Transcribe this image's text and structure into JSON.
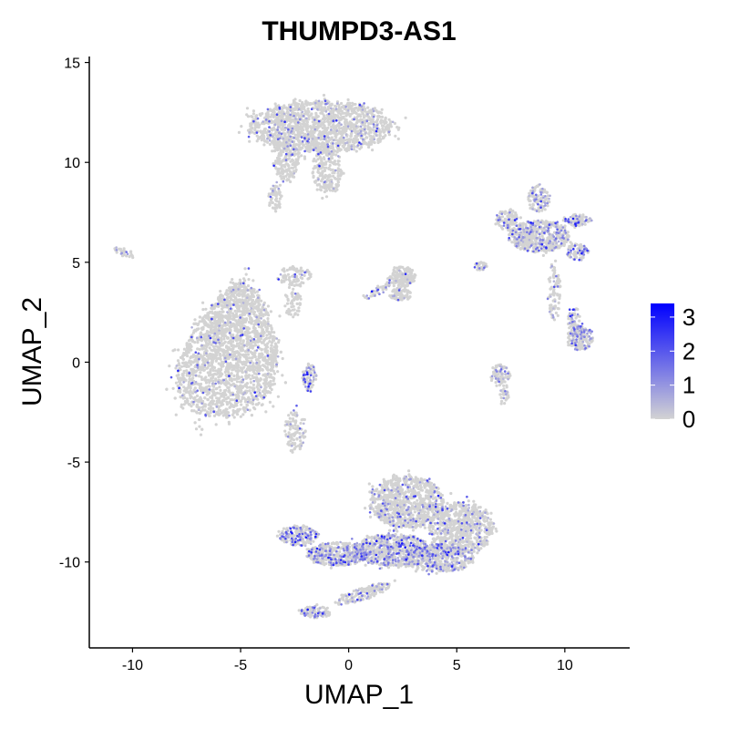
{
  "chart_data": {
    "type": "scatter",
    "title": "THUMPD3-AS1",
    "xlabel": "UMAP_1",
    "ylabel": "UMAP_2",
    "xlim": [
      -12,
      13
    ],
    "ylim": [
      -14.3,
      15.3
    ],
    "x_ticks": [
      {
        "value": -10,
        "label": "-10"
      },
      {
        "value": -5,
        "label": "-5"
      },
      {
        "value": 0,
        "label": "0"
      },
      {
        "value": 5,
        "label": "5"
      },
      {
        "value": 10,
        "label": "10"
      }
    ],
    "y_ticks": [
      {
        "value": 15,
        "label": "15"
      },
      {
        "value": 10,
        "label": "10"
      },
      {
        "value": 5,
        "label": "5"
      },
      {
        "value": 0,
        "label": "0"
      },
      {
        "value": -5,
        "label": "-5"
      },
      {
        "value": -10,
        "label": "-10"
      }
    ],
    "grid": false,
    "legend": {
      "placement": "right",
      "type": "colorbar",
      "min": 0,
      "max": 3.4,
      "low_color": "#d3d3d3",
      "high_color": "#0000ff",
      "ticks": [
        {
          "value": 3,
          "label": "3"
        },
        {
          "value": 2,
          "label": "2"
        },
        {
          "value": 1,
          "label": "1"
        },
        {
          "value": 0,
          "label": "0"
        }
      ]
    },
    "clusters": [
      {
        "cx": -6.0,
        "cy": 0.6,
        "rx": 3.0,
        "ry": 3.4,
        "count": 2600,
        "expr_rate": 0.05,
        "skew": "upper-right"
      },
      {
        "cx": -1.8,
        "cy": -0.8,
        "rx": 0.3,
        "ry": 0.7,
        "count": 80,
        "expr_rate": 0.3
      },
      {
        "cx": -2.5,
        "cy": 4.3,
        "rx": 0.8,
        "ry": 0.5,
        "count": 80,
        "expr_rate": 0.05
      },
      {
        "cx": -2.6,
        "cy": 3.0,
        "rx": 0.4,
        "ry": 0.8,
        "count": 60,
        "expr_rate": 0.05
      },
      {
        "cx": -2.5,
        "cy": -3.5,
        "rx": 0.5,
        "ry": 1.1,
        "count": 110,
        "expr_rate": 0.1
      },
      {
        "cx": -1.3,
        "cy": 11.8,
        "rx": 3.3,
        "ry": 1.3,
        "count": 1500,
        "expr_rate": 0.08
      },
      {
        "cx": -2.9,
        "cy": 10.2,
        "rx": 0.6,
        "ry": 1.2,
        "count": 220,
        "expr_rate": 0.05
      },
      {
        "cx": -3.4,
        "cy": 8.3,
        "rx": 0.3,
        "ry": 0.8,
        "count": 60,
        "expr_rate": 0.05
      },
      {
        "cx": -1.0,
        "cy": 9.6,
        "rx": 0.7,
        "ry": 1.2,
        "count": 220,
        "expr_rate": 0.05
      },
      {
        "cx": -10.4,
        "cy": 5.5,
        "rx": 0.5,
        "ry": 0.2,
        "count": 30,
        "expr_rate": 0.1,
        "angle": -25
      },
      {
        "cx": 2.5,
        "cy": 4.3,
        "rx": 0.6,
        "ry": 0.5,
        "count": 150,
        "expr_rate": 0.05
      },
      {
        "cx": 1.4,
        "cy": 3.6,
        "rx": 0.8,
        "ry": 0.2,
        "count": 50,
        "expr_rate": 0.15,
        "angle": 30
      },
      {
        "cx": 2.4,
        "cy": 3.4,
        "rx": 0.5,
        "ry": 0.3,
        "count": 80,
        "expr_rate": 0.05
      },
      {
        "cx": 8.8,
        "cy": 6.3,
        "rx": 1.4,
        "ry": 0.8,
        "count": 550,
        "expr_rate": 0.2
      },
      {
        "cx": 7.3,
        "cy": 7.2,
        "rx": 0.5,
        "ry": 0.5,
        "count": 100,
        "expr_rate": 0.15
      },
      {
        "cx": 8.8,
        "cy": 8.2,
        "rx": 0.5,
        "ry": 0.7,
        "count": 110,
        "expr_rate": 0.35
      },
      {
        "cx": 10.6,
        "cy": 7.1,
        "rx": 0.6,
        "ry": 0.3,
        "count": 80,
        "expr_rate": 0.35
      },
      {
        "cx": 10.6,
        "cy": 5.5,
        "rx": 0.5,
        "ry": 0.4,
        "count": 80,
        "expr_rate": 0.3
      },
      {
        "cx": 9.5,
        "cy": 3.5,
        "rx": 0.3,
        "ry": 1.5,
        "count": 90,
        "expr_rate": 0.2
      },
      {
        "cx": 10.7,
        "cy": 1.2,
        "rx": 0.6,
        "ry": 0.6,
        "count": 180,
        "expr_rate": 0.3
      },
      {
        "cx": 10.4,
        "cy": 2.2,
        "rx": 0.3,
        "ry": 0.6,
        "count": 50,
        "expr_rate": 0.3
      },
      {
        "cx": 6.1,
        "cy": 4.8,
        "rx": 0.3,
        "ry": 0.2,
        "count": 40,
        "expr_rate": 0.1
      },
      {
        "cx": 7.0,
        "cy": -0.6,
        "rx": 0.5,
        "ry": 0.5,
        "count": 90,
        "expr_rate": 0.15
      },
      {
        "cx": 7.2,
        "cy": -1.6,
        "rx": 0.2,
        "ry": 0.5,
        "count": 30,
        "expr_rate": 0.2
      },
      {
        "cx": 2.7,
        "cy": -7.0,
        "rx": 1.7,
        "ry": 1.3,
        "count": 900,
        "expr_rate": 0.12
      },
      {
        "cx": 5.2,
        "cy": -8.3,
        "rx": 1.5,
        "ry": 1.3,
        "count": 700,
        "expr_rate": 0.12
      },
      {
        "cx": 2.0,
        "cy": -9.4,
        "rx": 1.8,
        "ry": 0.8,
        "count": 700,
        "expr_rate": 0.3
      },
      {
        "cx": -0.5,
        "cy": -9.6,
        "rx": 1.4,
        "ry": 0.6,
        "count": 450,
        "expr_rate": 0.35
      },
      {
        "cx": -2.3,
        "cy": -8.7,
        "rx": 0.9,
        "ry": 0.5,
        "count": 200,
        "expr_rate": 0.35
      },
      {
        "cx": 4.2,
        "cy": -9.8,
        "rx": 1.6,
        "ry": 0.7,
        "count": 450,
        "expr_rate": 0.3
      },
      {
        "cx": 0.6,
        "cy": -11.6,
        "rx": 1.4,
        "ry": 0.3,
        "count": 150,
        "expr_rate": 0.2,
        "angle": 20
      },
      {
        "cx": -1.5,
        "cy": -12.5,
        "rx": 0.7,
        "ry": 0.3,
        "count": 100,
        "expr_rate": 0.25
      }
    ]
  }
}
